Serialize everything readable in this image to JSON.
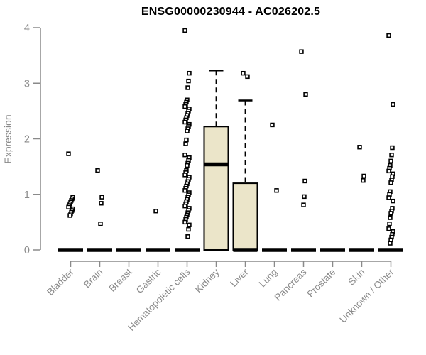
{
  "chart_data": {
    "type": "boxplot",
    "title": "ENSG00000230944 - AC026202.5",
    "ylabel": "Expression",
    "ylim": [
      0,
      4
    ],
    "yticks": [
      0,
      1,
      2,
      3,
      4
    ],
    "grid": false,
    "legend": "none",
    "axis_color": "#8a8a8a",
    "text_color": "#8a8a8a",
    "title_color": "#000000",
    "box_fill": "#ebe5c9",
    "box_border": "#000000",
    "point_fill": "#ffffff",
    "point_border": "#000000",
    "categories": [
      "Bladder",
      "Brain",
      "Breast",
      "Gastric",
      "Hematopoietic cells",
      "Kidney",
      "Liver",
      "Lung",
      "Pancreas",
      "Prostate",
      "Skin",
      "Unknown / Other"
    ],
    "boxes": [
      {
        "category": "Bladder",
        "q1": 0,
        "median": 0,
        "q3": 0,
        "whisker_low": 0,
        "whisker_high": 0,
        "outliers": [
          1.73,
          0.95,
          0.92,
          0.89,
          0.86,
          0.83,
          0.8,
          0.77,
          0.74,
          0.71,
          0.68,
          0.65,
          0.62
        ]
      },
      {
        "category": "Brain",
        "q1": 0,
        "median": 0,
        "q3": 0,
        "whisker_low": 0,
        "whisker_high": 0,
        "outliers": [
          1.43,
          0.95,
          0.84,
          0.47
        ]
      },
      {
        "category": "Breast",
        "q1": 0,
        "median": 0,
        "q3": 0,
        "whisker_low": 0,
        "whisker_high": 0,
        "outliers": []
      },
      {
        "category": "Gastric",
        "q1": 0,
        "median": 0,
        "q3": 0,
        "whisker_low": 0,
        "whisker_high": 0,
        "outliers": [
          0.7
        ]
      },
      {
        "category": "Hematopoietic cells",
        "q1": 0,
        "median": 0,
        "q3": 0,
        "whisker_low": 0,
        "whisker_high": 0,
        "outliers": [
          3.95,
          3.18,
          3.04,
          2.92,
          2.7,
          2.66,
          2.62,
          2.58,
          2.54,
          2.5,
          2.46,
          2.42,
          2.38,
          2.34,
          2.3,
          2.26,
          2.22,
          2.18,
          2.14,
          1.98,
          1.91,
          1.71,
          1.66,
          1.61,
          1.56,
          1.52,
          1.43,
          1.39,
          1.35,
          1.31,
          1.27,
          1.23,
          1.19,
          1.15,
          1.11,
          1.07,
          1.03,
          0.99,
          0.95,
          0.91,
          0.87,
          0.83,
          0.79,
          0.75,
          0.71,
          0.67,
          0.63,
          0.59,
          0.55,
          0.5,
          0.45,
          0.37,
          0.24
        ]
      },
      {
        "category": "Kidney",
        "q1": 0,
        "median": 1.54,
        "q3": 2.22,
        "whisker_low": 0,
        "whisker_high": 3.23,
        "outliers": []
      },
      {
        "category": "Liver",
        "q1": 0,
        "median": 0,
        "q3": 1.2,
        "whisker_low": 0,
        "whisker_high": 2.69,
        "outliers": [
          3.18,
          3.12
        ]
      },
      {
        "category": "Lung",
        "q1": 0,
        "median": 0,
        "q3": 0,
        "whisker_low": 0,
        "whisker_high": 0,
        "outliers": [
          2.25,
          1.07
        ]
      },
      {
        "category": "Pancreas",
        "q1": 0,
        "median": 0,
        "q3": 0,
        "whisker_low": 0,
        "whisker_high": 0,
        "outliers": [
          3.57,
          2.8,
          1.24,
          0.96,
          0.81
        ]
      },
      {
        "category": "Prostate",
        "q1": 0,
        "median": 0,
        "q3": 0,
        "whisker_low": 0,
        "whisker_high": 0,
        "outliers": []
      },
      {
        "category": "Skin",
        "q1": 0,
        "median": 0,
        "q3": 0,
        "whisker_low": 0,
        "whisker_high": 0,
        "outliers": [
          1.85,
          1.33,
          1.25
        ]
      },
      {
        "category": "Unknown / Other",
        "q1": 0,
        "median": 0,
        "q3": 0,
        "whisker_low": 0,
        "whisker_high": 0,
        "outliers": [
          3.86,
          2.62,
          1.84,
          1.71,
          1.6,
          1.52,
          1.47,
          1.42,
          1.37,
          1.32,
          1.26,
          1.21,
          1.05,
          1.0,
          0.94,
          0.88,
          0.75,
          0.7,
          0.66,
          0.58,
          0.47,
          0.38,
          0.33,
          0.28,
          0.23,
          0.18,
          0.12
        ]
      }
    ]
  }
}
